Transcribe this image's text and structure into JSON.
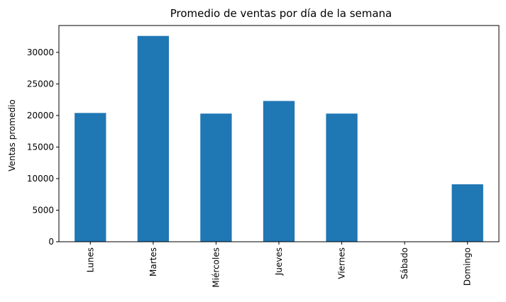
{
  "chart_data": {
    "type": "bar",
    "title": "Promedio de ventas por día de la semana",
    "xlabel": "",
    "ylabel": "Ventas promedio",
    "categories": [
      "Lunes",
      "Martes",
      "Miércoles",
      "Jueves",
      "Viernes",
      "Sábado",
      "Domingo"
    ],
    "values": [
      20400,
      32600,
      20300,
      22300,
      20300,
      0,
      9100
    ],
    "ylim": [
      0,
      34250
    ],
    "yticks": [
      0,
      5000,
      10000,
      15000,
      20000,
      25000,
      30000
    ],
    "ytick_labels": [
      "0",
      "5000",
      "10000",
      "15000",
      "20000",
      "25000",
      "30000"
    ],
    "grid": false,
    "bar_color": "#1f77b4",
    "xtick_rotation": 90
  }
}
